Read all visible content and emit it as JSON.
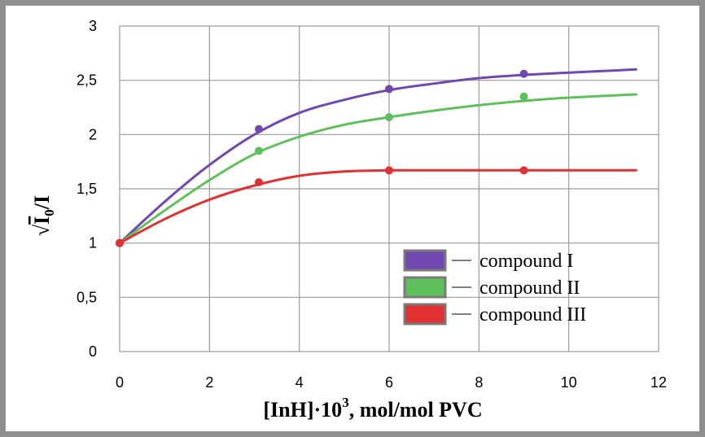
{
  "chart_data": {
    "type": "line",
    "xlabel_main": "[InH]·10",
    "xlabel_exp": "3",
    "xlabel_tail": ", mol/mol PVC",
    "ylabel_sqrt": "√",
    "ylabel_I": "I",
    "ylabel_sub": "0",
    "ylabel_tail": "/I",
    "xlim": [
      0,
      12
    ],
    "ylim": [
      0,
      3
    ],
    "x_ticks": [
      "0",
      "2",
      "4",
      "6",
      "8",
      "10",
      "12"
    ],
    "y_ticks": [
      "0",
      "0,5",
      "1",
      "1,5",
      "2",
      "2,5",
      "3"
    ],
    "grid": true,
    "legend_position": "bottom-right",
    "series": [
      {
        "name": "compound  I",
        "color": "#7048B0",
        "points": [
          [
            0,
            1.0
          ],
          [
            3.1,
            2.05
          ],
          [
            6.0,
            2.42
          ],
          [
            9.0,
            2.56
          ]
        ],
        "curve": [
          [
            0,
            1.0
          ],
          [
            1,
            1.38
          ],
          [
            2,
            1.72
          ],
          [
            3,
            2.0
          ],
          [
            4,
            2.2
          ],
          [
            5,
            2.32
          ],
          [
            6,
            2.41
          ],
          [
            7,
            2.47
          ],
          [
            8,
            2.52
          ],
          [
            9,
            2.55
          ],
          [
            10,
            2.57
          ],
          [
            11.5,
            2.6
          ]
        ]
      },
      {
        "name": "compound II",
        "color": "#5EC05A",
        "points": [
          [
            0,
            1.0
          ],
          [
            3.1,
            1.85
          ],
          [
            6.0,
            2.16
          ],
          [
            9.0,
            2.35
          ]
        ],
        "curve": [
          [
            0,
            1.0
          ],
          [
            1,
            1.3
          ],
          [
            2,
            1.58
          ],
          [
            3,
            1.82
          ],
          [
            4,
            1.98
          ],
          [
            5,
            2.09
          ],
          [
            6,
            2.16
          ],
          [
            7,
            2.22
          ],
          [
            8,
            2.27
          ],
          [
            9,
            2.31
          ],
          [
            10,
            2.34
          ],
          [
            11.5,
            2.37
          ]
        ]
      },
      {
        "name": "compound III",
        "color": "#E03030",
        "points": [
          [
            0,
            1.0
          ],
          [
            3.1,
            1.56
          ],
          [
            6.0,
            1.67
          ],
          [
            9.0,
            1.67
          ]
        ],
        "curve": [
          [
            0,
            1.0
          ],
          [
            1,
            1.22
          ],
          [
            2,
            1.4
          ],
          [
            3,
            1.53
          ],
          [
            4,
            1.62
          ],
          [
            5,
            1.66
          ],
          [
            6,
            1.67
          ],
          [
            7,
            1.67
          ],
          [
            8,
            1.67
          ],
          [
            9,
            1.67
          ],
          [
            10,
            1.67
          ],
          [
            11.5,
            1.67
          ]
        ]
      }
    ]
  }
}
